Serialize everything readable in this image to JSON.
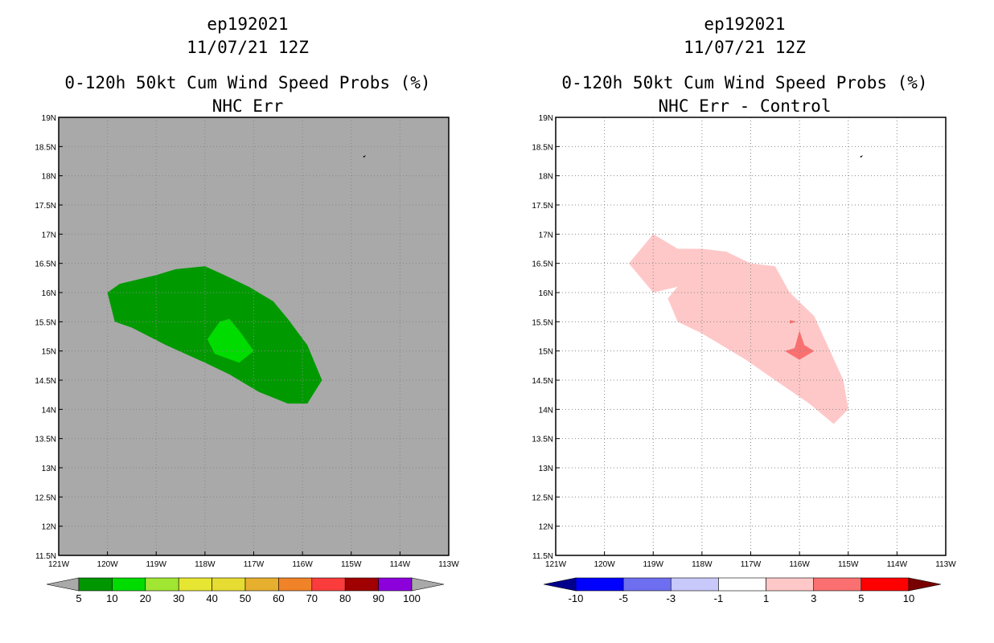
{
  "chart_data": [
    {
      "type": "filled-contour-map",
      "title_lines": [
        "ep192021",
        "11/07/21 12Z",
        "0-120h 50kt Cum Wind Speed Probs (%)",
        "NHC Err"
      ],
      "lon_range": [
        -121,
        -113
      ],
      "lat_range": [
        11.5,
        19
      ],
      "x_tick_labels": [
        "121W",
        "120W",
        "119W",
        "118W",
        "117W",
        "116W",
        "115W",
        "114W",
        "113W"
      ],
      "y_tick_labels": [
        "11.5N",
        "12N",
        "12.5N",
        "13N",
        "13.5N",
        "14N",
        "14.5N",
        "15N",
        "15.5N",
        "16N",
        "16.5N",
        "17N",
        "17.5N",
        "18N",
        "18.5N",
        "19N"
      ],
      "background_color": "#a9a9a9",
      "grid": true,
      "regions": [
        {
          "level": "5-10",
          "color": "#009a00",
          "points": [
            [
              -120.0,
              16.0
            ],
            [
              -119.75,
              16.15
            ],
            [
              -119.0,
              16.3
            ],
            [
              -118.6,
              16.4
            ],
            [
              -118.0,
              16.45
            ],
            [
              -117.6,
              16.3
            ],
            [
              -117.1,
              16.1
            ],
            [
              -116.6,
              15.85
            ],
            [
              -116.3,
              15.55
            ],
            [
              -115.9,
              15.1
            ],
            [
              -115.6,
              14.5
            ],
            [
              -115.9,
              14.1
            ],
            [
              -116.3,
              14.1
            ],
            [
              -116.9,
              14.3
            ],
            [
              -117.5,
              14.6
            ],
            [
              -118.0,
              14.8
            ],
            [
              -118.8,
              15.1
            ],
            [
              -119.5,
              15.4
            ],
            [
              -119.85,
              15.5
            ]
          ]
        },
        {
          "level": "10-20",
          "color": "#00dc00",
          "points": [
            [
              -117.7,
              15.5
            ],
            [
              -117.5,
              15.55
            ],
            [
              -117.3,
              15.35
            ],
            [
              -117.0,
              15.0
            ],
            [
              -117.3,
              14.8
            ],
            [
              -117.8,
              14.95
            ],
            [
              -117.95,
              15.2
            ]
          ]
        }
      ],
      "colorbar": {
        "labels": [
          "5",
          "10",
          "20",
          "30",
          "40",
          "50",
          "60",
          "70",
          "80",
          "90",
          "100"
        ],
        "colors": [
          "#009600",
          "#00dc00",
          "#a0e632",
          "#e6e632",
          "#e6dc32",
          "#e6af2d",
          "#f08228",
          "#fa3c3c",
          "#a00000",
          "#8c00dc"
        ],
        "extension_color": "#a9a9a9"
      }
    },
    {
      "type": "filled-contour-map",
      "title_lines": [
        "ep192021",
        "11/07/21 12Z",
        "0-120h 50kt Cum Wind Speed Probs (%)",
        "NHC Err - Control"
      ],
      "lon_range": [
        -121,
        -113
      ],
      "lat_range": [
        11.5,
        19
      ],
      "x_tick_labels": [
        "121W",
        "120W",
        "119W",
        "118W",
        "117W",
        "116W",
        "115W",
        "114W",
        "113W"
      ],
      "y_tick_labels": [
        "11.5N",
        "12N",
        "12.5N",
        "13N",
        "13.5N",
        "14N",
        "14.5N",
        "15N",
        "15.5N",
        "16N",
        "16.5N",
        "17N",
        "17.5N",
        "18N",
        "18.5N",
        "19N"
      ],
      "background_color": "#ffffff",
      "grid": true,
      "regions": [
        {
          "level": "1-3",
          "color": "#ffc8c8",
          "points": [
            [
              -119.5,
              16.5
            ],
            [
              -119.0,
              17.0
            ],
            [
              -118.5,
              16.75
            ],
            [
              -118.0,
              16.75
            ],
            [
              -117.5,
              16.7
            ],
            [
              -117.0,
              16.5
            ],
            [
              -116.5,
              16.45
            ],
            [
              -116.2,
              16.0
            ],
            [
              -115.7,
              15.6
            ],
            [
              -115.1,
              14.5
            ],
            [
              -115.0,
              14.0
            ],
            [
              -115.3,
              13.75
            ],
            [
              -115.8,
              14.1
            ],
            [
              -116.5,
              14.5
            ],
            [
              -117.1,
              14.85
            ],
            [
              -117.6,
              15.1
            ],
            [
              -118.0,
              15.3
            ],
            [
              -118.5,
              15.5
            ],
            [
              -118.7,
              15.9
            ],
            [
              -118.5,
              16.1
            ],
            [
              -119.0,
              16.0
            ]
          ]
        },
        {
          "level": "3-5",
          "color": "#fa7070",
          "points": [
            [
              -116.1,
              15.05
            ],
            [
              -116.0,
              15.35
            ],
            [
              -115.9,
              15.1
            ],
            [
              -115.7,
              15.0
            ],
            [
              -116.0,
              14.85
            ],
            [
              -116.3,
              15.0
            ]
          ]
        },
        {
          "level": "3-5",
          "color": "#fa7070",
          "points": [
            [
              -116.2,
              15.53
            ],
            [
              -116.05,
              15.5
            ],
            [
              -116.2,
              15.47
            ]
          ]
        }
      ],
      "colorbar": {
        "labels": [
          "-10",
          "-5",
          "-3",
          "-1",
          "1",
          "3",
          "5",
          "10"
        ],
        "colors": [
          "#0000ff",
          "#6e6ef0",
          "#c8c8fa",
          "#ffffff",
          "#ffc8c8",
          "#fa7070",
          "#ff0000"
        ],
        "low_extension_color": "#00008c",
        "high_extension_color": "#780000"
      }
    }
  ]
}
